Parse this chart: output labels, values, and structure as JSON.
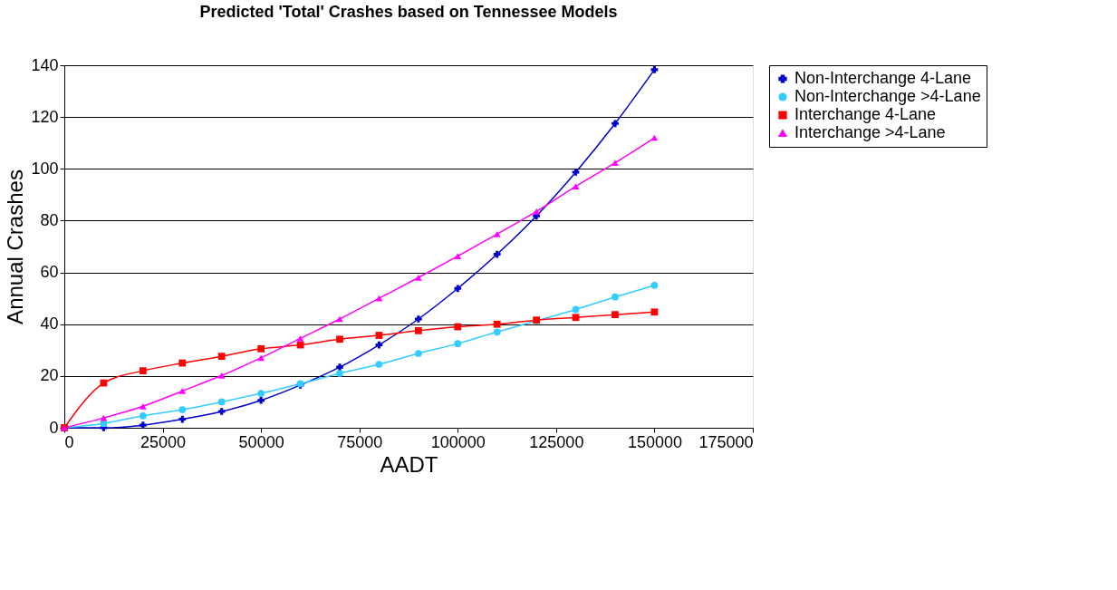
{
  "chart_data": {
    "type": "line",
    "title": "Predicted 'Total' Crashes based on Tennessee Models",
    "xlabel": "AADT",
    "ylabel": "Annual Crashes",
    "x": [
      0,
      10000,
      20000,
      30000,
      40000,
      50000,
      60000,
      70000,
      80000,
      90000,
      100000,
      110000,
      120000,
      130000,
      140000,
      150000
    ],
    "series": [
      {
        "name": "Non-Interchange 4-Lane",
        "color": "#0000cc",
        "marker": "cross",
        "values": [
          0,
          0,
          1,
          3.3,
          6.3,
          10.6,
          16.5,
          23.4,
          32,
          42,
          53.8,
          67,
          81.8,
          98.7,
          117.5,
          138.3
        ]
      },
      {
        "name": "Non-Interchange >4-Lane",
        "color": "#33ccff",
        "marker": "circle",
        "values": [
          0,
          1.7,
          4.6,
          7,
          10,
          13.3,
          17,
          21,
          24.5,
          28.7,
          32.5,
          37,
          41.3,
          45.7,
          50.5,
          55
        ]
      },
      {
        "name": "Interchange 4-Lane",
        "color": "#ff0000",
        "marker": "square",
        "values": [
          0,
          17.3,
          22,
          25,
          27.6,
          30.5,
          32,
          34.2,
          35.7,
          37.5,
          39,
          40,
          41.6,
          42.6,
          43.7,
          44.7
        ]
      },
      {
        "name": "Interchange >4-Lane",
        "color": "#ff00ff",
        "marker": "triangle",
        "values": [
          0,
          3.8,
          8.3,
          14.2,
          20.2,
          27,
          34.5,
          42,
          50,
          58,
          66.3,
          74.8,
          83.5,
          93.2,
          102.3,
          112
        ]
      }
    ],
    "xlim": [
      0,
      175000
    ],
    "xticks": [
      0,
      25000,
      50000,
      75000,
      100000,
      125000,
      150000,
      175000
    ],
    "ylim": [
      0,
      140
    ],
    "yticks": [
      0,
      20,
      40,
      60,
      80,
      100,
      120,
      140
    ],
    "grid": "y",
    "legend": "right"
  }
}
